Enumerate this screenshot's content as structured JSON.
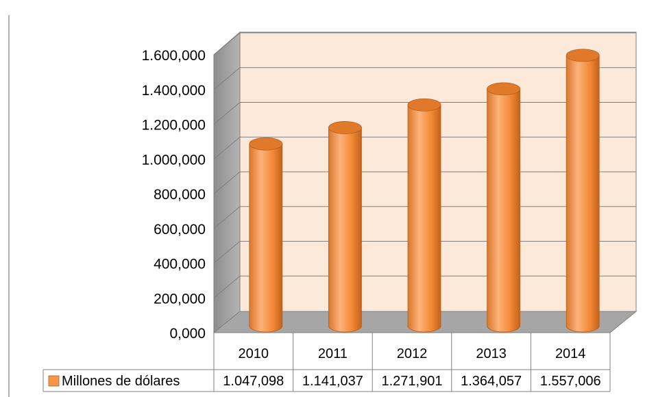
{
  "chart_data": {
    "type": "bar",
    "style": "3d-cylinder",
    "categories": [
      "2010",
      "2011",
      "2012",
      "2013",
      "2014"
    ],
    "series": [
      {
        "name": "Millones de dólares",
        "values": [
          1047098,
          1141037,
          1271901,
          1364057,
          1557006
        ],
        "value_labels": [
          "1.047,098",
          "1.141,037",
          "1.271,901",
          "1.364,057",
          "1.557,006"
        ]
      }
    ],
    "y_ticks": [
      "0,000",
      "200,000",
      "400,000",
      "600,000",
      "800,000",
      "1.000,000",
      "1.200,000",
      "1.400,000",
      "1.600,000"
    ],
    "ylim": [
      0,
      1600000
    ],
    "title": "",
    "xlabel": "",
    "ylabel": "",
    "grid": true,
    "legend": "data-table-left",
    "colors": {
      "bar": "#f79646",
      "bar_light": "#fcc48e",
      "bar_dark": "#c86a1e",
      "bar_top": "#e07a2a",
      "back_wall": "#fde9d9",
      "side_wall": "#a6a6a6",
      "floor": "#a6a6a6",
      "grid": "#7f7f7f",
      "table_border": "#7f7f7f"
    }
  }
}
